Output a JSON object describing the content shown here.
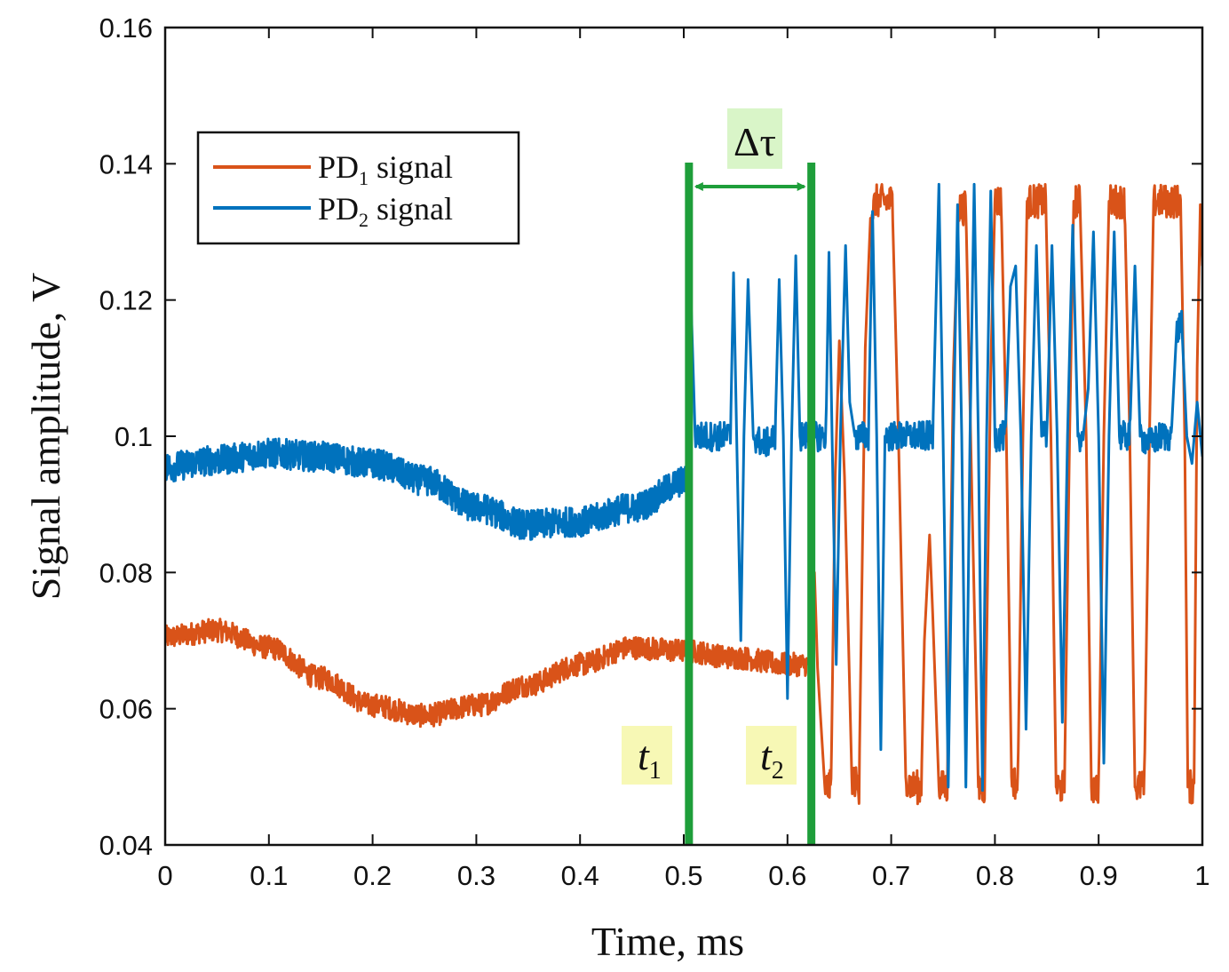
{
  "chart_data": {
    "type": "line",
    "xlabel": "Time, ms",
    "ylabel": "Signal amplitude, V",
    "xlim": [
      0,
      1
    ],
    "ylim": [
      0.04,
      0.16
    ],
    "xticks": [
      0,
      0.1,
      0.2,
      0.3,
      0.4,
      0.5,
      0.6,
      0.7,
      0.8,
      0.9,
      1
    ],
    "xtick_labels": [
      "0",
      "0.1",
      "0.2",
      "0.3",
      "0.4",
      "0.5",
      "0.6",
      "0.7",
      "0.8",
      "0.9",
      "1"
    ],
    "yticks": [
      0.04,
      0.06,
      0.08,
      0.1,
      0.12,
      0.14,
      0.16
    ],
    "ytick_labels": [
      "0.04",
      "0.06",
      "0.08",
      "0.1",
      "0.12",
      "0.14",
      "0.16"
    ],
    "grid": false,
    "legend_position": "upper-left",
    "series": [
      {
        "name_main": "PD",
        "name_sub": "1",
        "name_suffix": " signal",
        "color": "#D95319",
        "noise_band": 0.0017,
        "quiet_until": 0.623,
        "baseline": [
          [
            0,
            0.0705
          ],
          [
            0.05,
            0.0715
          ],
          [
            0.1,
            0.069
          ],
          [
            0.15,
            0.0645
          ],
          [
            0.2,
            0.0605
          ],
          [
            0.25,
            0.059
          ],
          [
            0.3,
            0.0605
          ],
          [
            0.35,
            0.0635
          ],
          [
            0.4,
            0.0665
          ],
          [
            0.45,
            0.069
          ],
          [
            0.5,
            0.0685
          ],
          [
            0.55,
            0.0675
          ],
          [
            0.6,
            0.0665
          ],
          [
            0.623,
            0.0665
          ]
        ],
        "trace": [
          [
            0.623,
            0.0665
          ],
          [
            0.626,
            0.08
          ],
          [
            0.629,
            0.066
          ],
          [
            0.633,
            0.056
          ],
          [
            0.636,
            0.0485
          ],
          [
            0.642,
            0.0485
          ],
          [
            0.646,
            0.094
          ],
          [
            0.65,
            0.114
          ],
          [
            0.655,
            0.094
          ],
          [
            0.662,
            0.05
          ],
          [
            0.669,
            0.0485
          ],
          [
            0.675,
            0.113
          ],
          [
            0.68,
            0.132
          ],
          [
            0.685,
            0.1345
          ],
          [
            0.701,
            0.1345
          ],
          [
            0.707,
            0.1
          ],
          [
            0.714,
            0.05
          ],
          [
            0.72,
            0.0485
          ],
          [
            0.729,
            0.0485
          ],
          [
            0.732,
            0.07
          ],
          [
            0.737,
            0.0855
          ],
          [
            0.74,
            0.074
          ],
          [
            0.746,
            0.0485
          ],
          [
            0.754,
            0.0485
          ],
          [
            0.76,
            0.11
          ],
          [
            0.765,
            0.1335
          ],
          [
            0.772,
            0.1335
          ],
          [
            0.778,
            0.09
          ],
          [
            0.784,
            0.0485
          ],
          [
            0.79,
            0.0485
          ],
          [
            0.796,
            0.11
          ],
          [
            0.8,
            0.1345
          ],
          [
            0.806,
            0.1345
          ],
          [
            0.811,
            0.1
          ],
          [
            0.816,
            0.05
          ],
          [
            0.822,
            0.0485
          ],
          [
            0.827,
            0.1
          ],
          [
            0.831,
            0.1345
          ],
          [
            0.849,
            0.1345
          ],
          [
            0.854,
            0.1
          ],
          [
            0.859,
            0.0485
          ],
          [
            0.867,
            0.0485
          ],
          [
            0.872,
            0.1
          ],
          [
            0.876,
            0.1345
          ],
          [
            0.882,
            0.1345
          ],
          [
            0.888,
            0.1
          ],
          [
            0.893,
            0.0485
          ],
          [
            0.9,
            0.0485
          ],
          [
            0.905,
            0.1
          ],
          [
            0.91,
            0.1345
          ],
          [
            0.925,
            0.1345
          ],
          [
            0.93,
            0.1
          ],
          [
            0.935,
            0.0485
          ],
          [
            0.944,
            0.0485
          ],
          [
            0.949,
            0.1
          ],
          [
            0.953,
            0.1345
          ],
          [
            0.979,
            0.1345
          ],
          [
            0.983,
            0.1
          ],
          [
            0.986,
            0.0485
          ],
          [
            0.992,
            0.0485
          ],
          [
            0.995,
            0.11
          ],
          [
            0.998,
            0.134
          ],
          [
            1.0,
            0.125
          ]
        ],
        "plateau_noise": 0.0025
      },
      {
        "name_main": "PD",
        "name_sub": "2",
        "name_suffix": " signal",
        "color": "#0072BD",
        "noise_band": 0.0022,
        "quiet_until": 0.505,
        "baseline": [
          [
            0,
            0.0955
          ],
          [
            0.05,
            0.0965
          ],
          [
            0.1,
            0.0975
          ],
          [
            0.15,
            0.097
          ],
          [
            0.2,
            0.096
          ],
          [
            0.25,
            0.0935
          ],
          [
            0.3,
            0.0895
          ],
          [
            0.35,
            0.087
          ],
          [
            0.4,
            0.0875
          ],
          [
            0.45,
            0.0895
          ],
          [
            0.505,
            0.0935
          ]
        ],
        "trace": [
          [
            0.505,
            0.0935
          ],
          [
            0.507,
            0.12
          ],
          [
            0.511,
            0.1
          ],
          [
            0.52,
            0.1
          ],
          [
            0.54,
            0.1
          ],
          [
            0.545,
            0.1
          ],
          [
            0.548,
            0.124
          ],
          [
            0.551,
            0.1
          ],
          [
            0.555,
            0.07
          ],
          [
            0.558,
            0.1
          ],
          [
            0.562,
            0.123
          ],
          [
            0.567,
            0.1
          ],
          [
            0.575,
            0.099
          ],
          [
            0.58,
            0.099
          ],
          [
            0.588,
            0.1
          ],
          [
            0.592,
            0.123
          ],
          [
            0.596,
            0.1
          ],
          [
            0.6,
            0.0615
          ],
          [
            0.604,
            0.1
          ],
          [
            0.608,
            0.1265
          ],
          [
            0.612,
            0.1
          ],
          [
            0.62,
            0.1
          ],
          [
            0.63,
            0.1
          ],
          [
            0.637,
            0.1
          ],
          [
            0.64,
            0.127
          ],
          [
            0.643,
            0.1
          ],
          [
            0.647,
            0.0665
          ],
          [
            0.651,
            0.1
          ],
          [
            0.656,
            0.128
          ],
          [
            0.66,
            0.105
          ],
          [
            0.665,
            0.1
          ],
          [
            0.675,
            0.1
          ],
          [
            0.678,
            0.1
          ],
          [
            0.682,
            0.133
          ],
          [
            0.686,
            0.1
          ],
          [
            0.69,
            0.054
          ],
          [
            0.694,
            0.1
          ],
          [
            0.7,
            0.1
          ],
          [
            0.72,
            0.1
          ],
          [
            0.735,
            0.1
          ],
          [
            0.74,
            0.1
          ],
          [
            0.746,
            0.137
          ],
          [
            0.75,
            0.1
          ],
          [
            0.755,
            0.0485
          ],
          [
            0.76,
            0.1
          ],
          [
            0.764,
            0.134
          ],
          [
            0.768,
            0.1
          ],
          [
            0.772,
            0.0485
          ],
          [
            0.776,
            0.1
          ],
          [
            0.78,
            0.137
          ],
          [
            0.784,
            0.1
          ],
          [
            0.788,
            0.048
          ],
          [
            0.792,
            0.1
          ],
          [
            0.796,
            0.136
          ],
          [
            0.8,
            0.1
          ],
          [
            0.804,
            0.1
          ],
          [
            0.81,
            0.1
          ],
          [
            0.815,
            0.122
          ],
          [
            0.82,
            0.125
          ],
          [
            0.825,
            0.1
          ],
          [
            0.83,
            0.057
          ],
          [
            0.835,
            0.1
          ],
          [
            0.84,
            0.128
          ],
          [
            0.845,
            0.1
          ],
          [
            0.85,
            0.1
          ],
          [
            0.855,
            0.128
          ],
          [
            0.86,
            0.1
          ],
          [
            0.865,
            0.058
          ],
          [
            0.87,
            0.1
          ],
          [
            0.875,
            0.131
          ],
          [
            0.88,
            0.1
          ],
          [
            0.885,
            0.1
          ],
          [
            0.89,
            0.107
          ],
          [
            0.895,
            0.13
          ],
          [
            0.9,
            0.1
          ],
          [
            0.905,
            0.052
          ],
          [
            0.91,
            0.1
          ],
          [
            0.915,
            0.13
          ],
          [
            0.92,
            0.1
          ],
          [
            0.93,
            0.1
          ],
          [
            0.935,
            0.125
          ],
          [
            0.94,
            0.1
          ],
          [
            0.95,
            0.099
          ],
          [
            0.96,
            0.1
          ],
          [
            0.97,
            0.1
          ],
          [
            0.975,
            0.115
          ],
          [
            0.98,
            0.117
          ],
          [
            0.985,
            0.1
          ],
          [
            0.99,
            0.096
          ],
          [
            0.995,
            0.105
          ],
          [
            1.0,
            0.097
          ]
        ],
        "plateau_noise": 0.0022
      }
    ],
    "markers": [
      {
        "x": 0.505,
        "color": "#1E9E3A"
      },
      {
        "x": 0.623,
        "color": "#1E9E3A"
      }
    ],
    "annotations": {
      "delta_tau": "Δτ",
      "t1_main": "t",
      "t1_sub": "1",
      "t2_main": "t",
      "t2_sub": "2",
      "highlight_color": "#F7F8B5",
      "delta_highlight_color": "#D9F5C8",
      "arrow_color": "#1E9E3A"
    }
  }
}
